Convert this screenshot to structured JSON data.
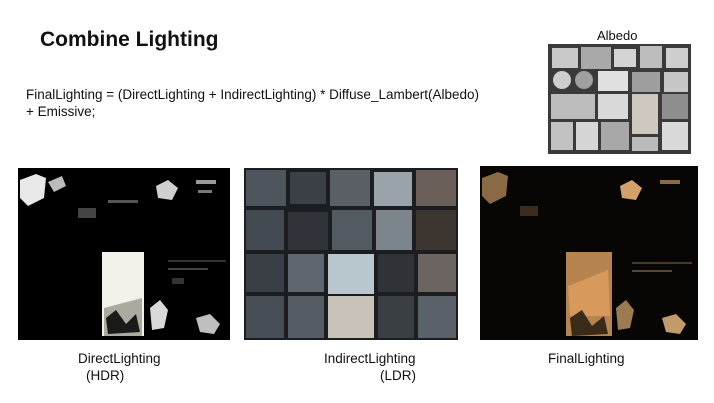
{
  "slide": {
    "title": "Combine Lighting",
    "formula_line1": "FinalLighting = (DirectLighting + IndirectLighting) * Diffuse_Lambert(Albedo)",
    "formula_line2": "+ Emissive;"
  },
  "albedo": {
    "label": "Albedo"
  },
  "buffers": [
    {
      "name": "DirectLighting",
      "range": "(HDR)"
    },
    {
      "name": "IndirectLighting",
      "range": "(LDR)"
    },
    {
      "name": "FinalLighting"
    }
  ],
  "colors": {
    "direct_bg": "#000000",
    "indirect_tile": "#5a5f66",
    "final_accent": "#d79a5c",
    "albedo_tile": "#b8b8b8"
  }
}
